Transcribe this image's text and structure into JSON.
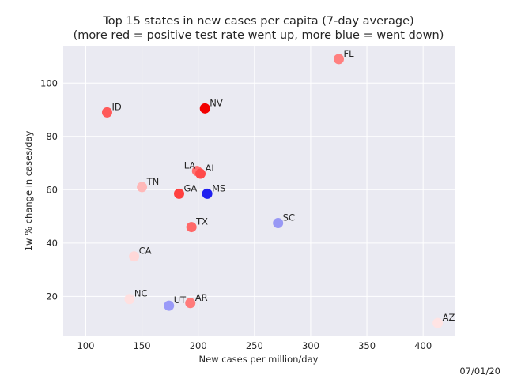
{
  "chart_data": {
    "type": "scatter",
    "title": "Top 15 states in new cases per capita (7-day average)",
    "subtitle": "(more red = positive test rate went up, more blue = went down)",
    "xlabel": "New cases per million/day",
    "ylabel": "1w % change in cases/day",
    "xlim": [
      80,
      428
    ],
    "ylim": [
      5,
      114
    ],
    "xticks": [
      100,
      150,
      200,
      250,
      300,
      350,
      400
    ],
    "yticks": [
      20,
      40,
      60,
      80,
      100
    ],
    "grid": true,
    "points": [
      {
        "label": "FL",
        "x": 325,
        "y": 109,
        "color": "#ff8080"
      },
      {
        "label": "ID",
        "x": 119,
        "y": 89,
        "color": "#ff5a5a"
      },
      {
        "label": "NV",
        "x": 206,
        "y": 90.5,
        "color": "#f20000"
      },
      {
        "label": "LA",
        "x": 199,
        "y": 67,
        "color": "#ff6e6e"
      },
      {
        "label": "AL",
        "x": 202,
        "y": 66,
        "color": "#ff4a4a"
      },
      {
        "label": "TN",
        "x": 150,
        "y": 61,
        "color": "#ffb8b8"
      },
      {
        "label": "GA",
        "x": 183,
        "y": 58.5,
        "color": "#ff4040"
      },
      {
        "label": "MS",
        "x": 208,
        "y": 58.5,
        "color": "#2020f0"
      },
      {
        "label": "SC",
        "x": 271,
        "y": 47.5,
        "color": "#9898f5"
      },
      {
        "label": "TX",
        "x": 194,
        "y": 46,
        "color": "#ff6868"
      },
      {
        "label": "CA",
        "x": 143,
        "y": 35,
        "color": "#ffd8d8"
      },
      {
        "label": "NC",
        "x": 139,
        "y": 19,
        "color": "#ffe0e0"
      },
      {
        "label": "UT",
        "x": 174,
        "y": 16.5,
        "color": "#9a9af8"
      },
      {
        "label": "AR",
        "x": 193,
        "y": 17.5,
        "color": "#ff7a7a"
      },
      {
        "label": "AZ",
        "x": 413,
        "y": 10,
        "color": "#ffe4e4"
      }
    ]
  },
  "footer_date": "07/01/20"
}
